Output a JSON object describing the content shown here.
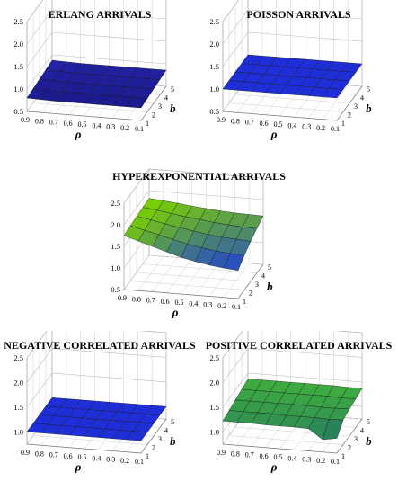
{
  "chart_data": [
    {
      "type": "surface",
      "title": "ERLANG ARRIVALS",
      "xlabel": "ρ",
      "ylabel": "b",
      "x_ticks": [
        "0.9",
        "0.8",
        "0.7",
        "0.6",
        "0.5",
        "0.4",
        "0.3",
        "0.2",
        "0.1"
      ],
      "y_ticks": [
        "1",
        "2",
        "3",
        "4",
        "5"
      ],
      "z_ticks": [
        "0.5",
        "1.0",
        "1.5",
        "2.0",
        "2.5"
      ],
      "zlim": [
        0.5,
        2.5
      ],
      "rho": [
        0.9,
        0.8,
        0.7,
        0.6,
        0.5,
        0.4,
        0.3,
        0.2,
        0.1
      ],
      "b": [
        1,
        2,
        3,
        4,
        5
      ],
      "z": [
        [
          0.8,
          0.79,
          0.78,
          0.78,
          0.78,
          0.78,
          0.78,
          0.78,
          0.78
        ],
        [
          0.82,
          0.81,
          0.8,
          0.8,
          0.8,
          0.8,
          0.8,
          0.8,
          0.8
        ],
        [
          0.84,
          0.83,
          0.82,
          0.82,
          0.82,
          0.82,
          0.82,
          0.82,
          0.82
        ],
        [
          0.86,
          0.85,
          0.84,
          0.84,
          0.84,
          0.84,
          0.84,
          0.84,
          0.84
        ],
        [
          0.88,
          0.87,
          0.86,
          0.86,
          0.86,
          0.86,
          0.86,
          0.86,
          0.86
        ]
      ],
      "colors": [
        "#1a1a8c",
        "#2424a8"
      ],
      "grid": true
    },
    {
      "type": "surface",
      "title": "POISSON ARRIVALS",
      "xlabel": "ρ",
      "ylabel": "b",
      "x_ticks": [
        "0.9",
        "0.8",
        "0.7",
        "0.6",
        "0.5",
        "0.4",
        "0.3",
        "0.2",
        "0.1"
      ],
      "y_ticks": [
        "1",
        "2",
        "3",
        "4",
        "5"
      ],
      "z_ticks": [
        "0.5",
        "1.0",
        "1.5",
        "2.0",
        "2.5"
      ],
      "zlim": [
        0.5,
        2.5
      ],
      "rho": [
        0.9,
        0.8,
        0.7,
        0.6,
        0.5,
        0.4,
        0.3,
        0.2,
        0.1
      ],
      "b": [
        1,
        2,
        3,
        4,
        5
      ],
      "z": [
        [
          1.0,
          1.0,
          1.0,
          1.0,
          1.0,
          1.0,
          1.0,
          1.0,
          1.0
        ],
        [
          1.0,
          1.0,
          1.0,
          1.0,
          1.0,
          1.0,
          1.0,
          1.0,
          1.0
        ],
        [
          1.0,
          1.0,
          1.0,
          1.0,
          1.0,
          1.0,
          1.0,
          1.0,
          1.0
        ],
        [
          1.0,
          1.0,
          1.0,
          1.0,
          1.0,
          1.0,
          1.0,
          1.0,
          1.0
        ],
        [
          1.0,
          1.0,
          1.0,
          1.0,
          1.0,
          1.0,
          1.0,
          1.0,
          1.0
        ]
      ],
      "colors": [
        "#1f2fd8",
        "#2a3cf0"
      ],
      "grid": true
    },
    {
      "type": "surface",
      "title": "HYPEREXPONENTIAL ARRIVALS",
      "xlabel": "ρ",
      "ylabel": "b",
      "x_ticks": [
        "0.9",
        "0.8",
        "0.7",
        "0.6",
        "0.5",
        "0.4",
        "0.3",
        "0.2",
        "0.1"
      ],
      "y_ticks": [
        "1",
        "2",
        "3",
        "4",
        "5"
      ],
      "z_ticks": [
        "0.5",
        "1.0",
        "1.5",
        "2.0",
        "2.5"
      ],
      "zlim": [
        0.5,
        2.5
      ],
      "rho": [
        0.9,
        0.8,
        0.7,
        0.6,
        0.5,
        0.4,
        0.3,
        0.2,
        0.1
      ],
      "b": [
        1,
        2,
        3,
        4,
        5
      ],
      "z": [
        [
          1.75,
          1.65,
          1.55,
          1.45,
          1.35,
          1.28,
          1.22,
          1.18,
          1.15
        ],
        [
          1.78,
          1.7,
          1.62,
          1.54,
          1.46,
          1.4,
          1.35,
          1.32,
          1.3
        ],
        [
          1.8,
          1.74,
          1.68,
          1.62,
          1.56,
          1.51,
          1.47,
          1.45,
          1.43
        ],
        [
          1.81,
          1.77,
          1.72,
          1.67,
          1.63,
          1.59,
          1.56,
          1.54,
          1.53
        ],
        [
          1.82,
          1.79,
          1.76,
          1.72,
          1.69,
          1.66,
          1.64,
          1.63,
          1.62
        ]
      ],
      "colors": [
        "#1f3fd8",
        "#7ad200"
      ],
      "grid": true
    },
    {
      "type": "surface",
      "title": "NEGATIVE CORRELATED ARRIVALS",
      "xlabel": "ρ",
      "ylabel": "b",
      "x_ticks": [
        "0.9",
        "0.8",
        "0.7",
        "0.6",
        "0.5",
        "0.4",
        "0.3",
        "0.2",
        "0.1"
      ],
      "y_ticks": [
        "1",
        "2",
        "3",
        "4",
        "5"
      ],
      "z_ticks": [
        "1.0",
        "1.5",
        "2.0",
        "2.5"
      ],
      "zlim": [
        0.75,
        2.5
      ],
      "rho": [
        0.9,
        0.8,
        0.7,
        0.6,
        0.5,
        0.4,
        0.3,
        0.2,
        0.1
      ],
      "b": [
        1,
        2,
        3,
        4,
        5
      ],
      "z": [
        [
          1.0,
          1.0,
          1.0,
          1.0,
          1.0,
          1.0,
          1.0,
          1.0,
          1.0
        ],
        [
          1.0,
          1.0,
          1.0,
          1.0,
          1.0,
          1.0,
          1.0,
          1.0,
          1.0
        ],
        [
          1.0,
          1.0,
          1.0,
          1.0,
          1.0,
          1.0,
          1.0,
          1.0,
          1.0
        ],
        [
          1.0,
          1.0,
          1.0,
          1.0,
          1.0,
          1.0,
          1.0,
          1.0,
          1.0
        ],
        [
          1.0,
          1.0,
          1.0,
          1.0,
          1.0,
          1.0,
          1.0,
          1.0,
          1.0
        ]
      ],
      "colors": [
        "#1f2fd8",
        "#2a3cf0"
      ],
      "grid": true
    },
    {
      "type": "surface",
      "title": "POSITIVE CORRELATED ARRIVALS",
      "xlabel": "ρ",
      "ylabel": "b",
      "x_ticks": [
        "0.9",
        "0.8",
        "0.7",
        "0.6",
        "0.5",
        "0.4",
        "0.3",
        "0.2",
        "0.1"
      ],
      "y_ticks": [
        "1",
        "2",
        "3",
        "4",
        "5"
      ],
      "z_ticks": [
        "1.0",
        "1.5",
        "2.0",
        "2.5"
      ],
      "zlim": [
        0.75,
        2.5
      ],
      "rho": [
        0.9,
        0.8,
        0.7,
        0.6,
        0.5,
        0.4,
        0.3,
        0.2,
        0.1
      ],
      "b": [
        1,
        2,
        3,
        4,
        5
      ],
      "z": [
        [
          1.22,
          1.22,
          1.22,
          1.21,
          1.21,
          1.21,
          1.2,
          1.0,
          1.05
        ],
        [
          1.26,
          1.26,
          1.26,
          1.26,
          1.25,
          1.25,
          1.25,
          1.24,
          1.25
        ],
        [
          1.3,
          1.3,
          1.3,
          1.3,
          1.3,
          1.3,
          1.29,
          1.29,
          1.3
        ],
        [
          1.34,
          1.34,
          1.34,
          1.34,
          1.34,
          1.34,
          1.34,
          1.33,
          1.33
        ],
        [
          1.38,
          1.38,
          1.38,
          1.38,
          1.38,
          1.38,
          1.38,
          1.37,
          1.37
        ]
      ],
      "colors": [
        "#1e6a6a",
        "#3fae3f"
      ],
      "grid": true
    }
  ]
}
